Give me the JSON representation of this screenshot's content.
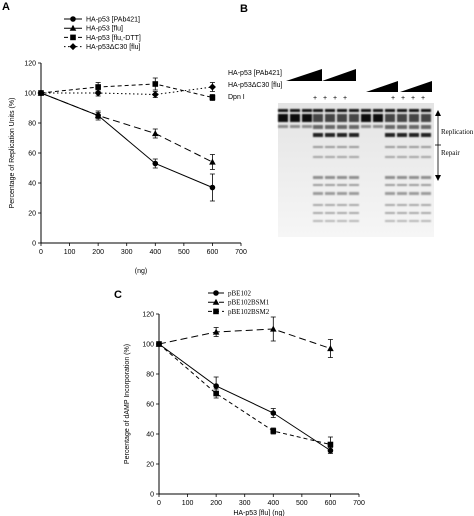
{
  "panels": {
    "a_letter": "A",
    "b_letter": "B",
    "c_letter": "C"
  },
  "gel": {
    "row1_label": "HA-p53 [PAb421]",
    "row2_label": "HA-p53ΔC30 [flu]",
    "row3_label": "Dpn I",
    "plus_sign": "+",
    "replication_label": "Replication",
    "repair_label": "Repair"
  },
  "chart_data": [
    {
      "type": "line",
      "xlabel": "(ng)",
      "ylabel": "Percentage of Replication Units (%)",
      "xlim": [
        0,
        700
      ],
      "ylim": [
        0,
        120
      ],
      "xticks": [
        0,
        100,
        200,
        300,
        400,
        500,
        600,
        700
      ],
      "yticks": [
        0,
        20,
        40,
        60,
        80,
        100,
        120
      ],
      "legend_position": "top",
      "x": [
        0,
        200,
        400,
        600
      ],
      "series": [
        {
          "name": "HA-p53 [PAb421]",
          "values": [
            100,
            85,
            53,
            37
          ],
          "marker": "circle",
          "dash": "solid",
          "errors": [
            0,
            2,
            3,
            9
          ]
        },
        {
          "name": "HA-p53 [flu]",
          "values": [
            100,
            85,
            73,
            54
          ],
          "marker": "triangle",
          "dash": "long",
          "errors": [
            0,
            3,
            3,
            5
          ]
        },
        {
          "name": "HA-p53 [flu,-DTT]",
          "values": [
            100,
            104,
            106,
            97
          ],
          "marker": "square",
          "dash": "short",
          "errors": [
            0,
            3,
            4,
            2
          ]
        },
        {
          "name": "HA-p53ΔC30 [flu]",
          "values": [
            100,
            100,
            99,
            104
          ],
          "marker": "diamond",
          "dash": "dotted",
          "errors": [
            0,
            2,
            2,
            3
          ]
        }
      ]
    },
    {
      "type": "line",
      "xlabel": "HA-p53 [flu] (ng)",
      "ylabel": "Percentage of dAMP Incorporation (%)",
      "xlim": [
        0,
        700
      ],
      "ylim": [
        0,
        120
      ],
      "xticks": [
        0,
        100,
        200,
        300,
        400,
        500,
        600,
        700
      ],
      "yticks": [
        0,
        20,
        40,
        60,
        80,
        100,
        120
      ],
      "legend_position": "top",
      "x": [
        0,
        200,
        400,
        600
      ],
      "series": [
        {
          "name": "pBE102",
          "values": [
            100,
            72,
            54,
            29
          ],
          "marker": "circle",
          "dash": "solid",
          "errors": [
            0,
            6,
            3,
            2
          ]
        },
        {
          "name": "pBE102BSM1",
          "values": [
            100,
            108,
            110,
            97
          ],
          "marker": "triangle",
          "dash": "long",
          "errors": [
            0,
            3,
            8,
            6
          ]
        },
        {
          "name": "pBE102BSM2",
          "values": [
            100,
            67,
            42,
            33
          ],
          "marker": "square",
          "dash": "short",
          "errors": [
            0,
            3,
            2,
            5
          ]
        }
      ]
    }
  ]
}
